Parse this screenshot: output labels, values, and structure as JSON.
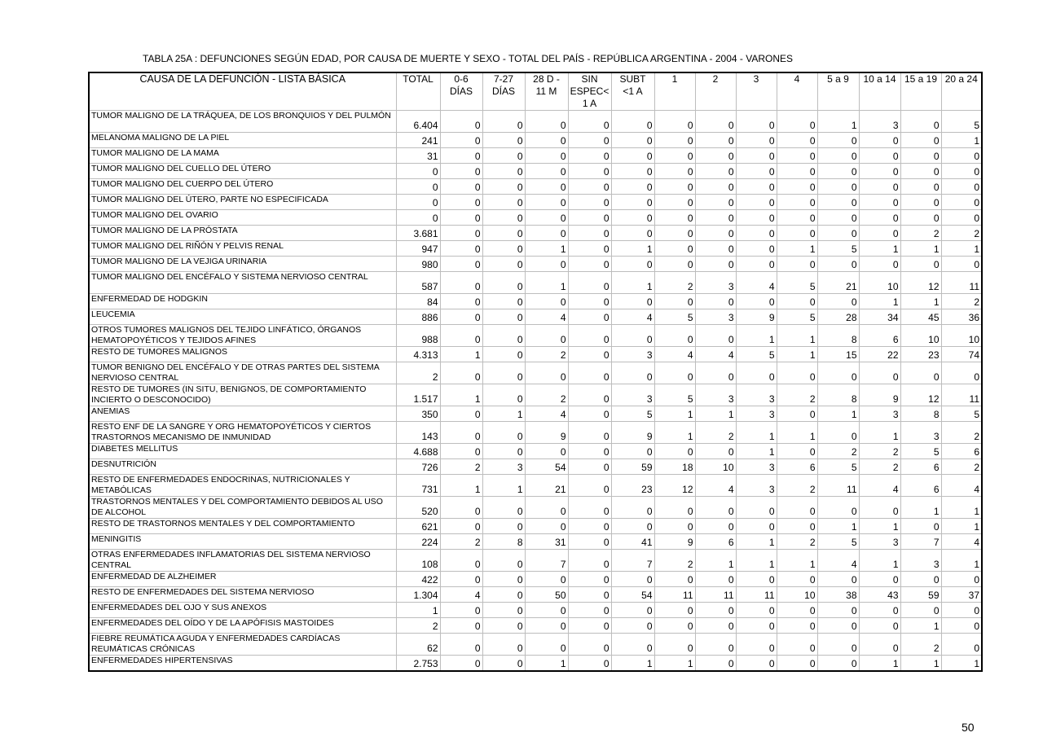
{
  "title": "TABLA 25A : DEFUNCIONES SEGÚN EDAD, POR CAUSA DE MUERTE Y SEXO - TOTAL DEL PAÍS - REPÚBLICA ARGENTINA - 2004 - VARONES",
  "page_number": "50",
  "columns": [
    "CAUSA DE LA DEFUNCIÓN - LISTA BÁSICA",
    "TOTAL",
    "0-6 DÍAS",
    "7-27 DÍAS",
    "28 D - 11 M",
    "SIN ESPEC< 1 A",
    "SUBT <1 A",
    "1",
    "2",
    "3",
    "4",
    "5 a 9",
    "10 a 14",
    "15 a 19",
    "20 a 24"
  ],
  "rows": [
    {
      "cause": "TUMOR MALIGNO DE LA TRÁQUEA,  DE LOS BRONQUIOS Y DEL PULMÓN",
      "values": [
        "6.404",
        "0",
        "0",
        "0",
        "0",
        "0",
        "0",
        "0",
        "0",
        "0",
        "1",
        "3",
        "0",
        "5"
      ]
    },
    {
      "cause": "MELANOMA MALIGNO DE LA PIEL",
      "values": [
        "241",
        "0",
        "0",
        "0",
        "0",
        "0",
        "0",
        "0",
        "0",
        "0",
        "0",
        "0",
        "0",
        "1"
      ]
    },
    {
      "cause": "TUMOR MALIGNO DE LA MAMA",
      "values": [
        "31",
        "0",
        "0",
        "0",
        "0",
        "0",
        "0",
        "0",
        "0",
        "0",
        "0",
        "0",
        "0",
        "0"
      ]
    },
    {
      "cause": "TUMOR MALIGNO DEL CUELLO DEL ÚTERO",
      "values": [
        "0",
        "0",
        "0",
        "0",
        "0",
        "0",
        "0",
        "0",
        "0",
        "0",
        "0",
        "0",
        "0",
        "0"
      ]
    },
    {
      "cause": "TUMOR MALIGNO DEL CUERPO DEL ÚTERO",
      "values": [
        "0",
        "0",
        "0",
        "0",
        "0",
        "0",
        "0",
        "0",
        "0",
        "0",
        "0",
        "0",
        "0",
        "0"
      ]
    },
    {
      "cause": "TUMOR MALIGNO DEL ÚTERO, PARTE NO ESPECIFICADA",
      "values": [
        "0",
        "0",
        "0",
        "0",
        "0",
        "0",
        "0",
        "0",
        "0",
        "0",
        "0",
        "0",
        "0",
        "0"
      ]
    },
    {
      "cause": "TUMOR MALIGNO DEL OVARIO",
      "values": [
        "0",
        "0",
        "0",
        "0",
        "0",
        "0",
        "0",
        "0",
        "0",
        "0",
        "0",
        "0",
        "0",
        "0"
      ]
    },
    {
      "cause": "TUMOR MALIGNO DE LA PRÓSTATA",
      "values": [
        "3.681",
        "0",
        "0",
        "0",
        "0",
        "0",
        "0",
        "0",
        "0",
        "0",
        "0",
        "0",
        "2",
        "2"
      ]
    },
    {
      "cause": "TUMOR MALIGNO DEL RIÑÓN Y PELVIS RENAL",
      "values": [
        "947",
        "0",
        "0",
        "1",
        "0",
        "1",
        "0",
        "0",
        "0",
        "1",
        "5",
        "1",
        "1",
        "1"
      ]
    },
    {
      "cause": "TUMOR MALIGNO DE LA VEJIGA URINARIA",
      "values": [
        "980",
        "0",
        "0",
        "0",
        "0",
        "0",
        "0",
        "0",
        "0",
        "0",
        "0",
        "0",
        "0",
        "0"
      ]
    },
    {
      "cause": "TUMOR MALIGNO DEL ENCÉFALO Y SISTEMA NERVIOSO CENTRAL",
      "values": [
        "587",
        "0",
        "0",
        "1",
        "0",
        "1",
        "2",
        "3",
        "4",
        "5",
        "21",
        "10",
        "12",
        "11"
      ]
    },
    {
      "cause": "ENFERMEDAD DE HODGKIN",
      "values": [
        "84",
        "0",
        "0",
        "0",
        "0",
        "0",
        "0",
        "0",
        "0",
        "0",
        "0",
        "1",
        "1",
        "2"
      ]
    },
    {
      "cause": "LEUCEMIA",
      "values": [
        "886",
        "0",
        "0",
        "4",
        "0",
        "4",
        "5",
        "3",
        "9",
        "5",
        "28",
        "34",
        "45",
        "36"
      ]
    },
    {
      "cause": "OTROS TUMORES MALIGNOS DEL TEJIDO LINFÁTICO, ÓRGANOS HEMATOPOYÉTICOS Y TEJIDOS AFINES",
      "values": [
        "988",
        "0",
        "0",
        "0",
        "0",
        "0",
        "0",
        "0",
        "1",
        "1",
        "8",
        "6",
        "10",
        "10"
      ]
    },
    {
      "cause": "RESTO DE TUMORES MALIGNOS",
      "values": [
        "4.313",
        "1",
        "0",
        "2",
        "0",
        "3",
        "4",
        "4",
        "5",
        "1",
        "15",
        "22",
        "23",
        "74"
      ]
    },
    {
      "cause": "TUMOR BENIGNO DEL ENCÉFALO Y DE OTRAS PARTES DEL SISTEMA NERVIOSO CENTRAL",
      "values": [
        "2",
        "0",
        "0",
        "0",
        "0",
        "0",
        "0",
        "0",
        "0",
        "0",
        "0",
        "0",
        "0",
        "0"
      ]
    },
    {
      "cause": "RESTO DE TUMORES (IN SITU, BENIGNOS, DE COMPORTAMIENTO INCIERTO O DESCONOCIDO)",
      "values": [
        "1.517",
        "1",
        "0",
        "2",
        "0",
        "3",
        "5",
        "3",
        "3",
        "2",
        "8",
        "9",
        "12",
        "11"
      ]
    },
    {
      "cause": "ANEMIAS",
      "values": [
        "350",
        "0",
        "1",
        "4",
        "0",
        "5",
        "1",
        "1",
        "3",
        "0",
        "1",
        "3",
        "8",
        "5"
      ]
    },
    {
      "cause": "RESTO ENF DE LA SANGRE Y ORG HEMATOPOYÉTICOS Y CIERTOS TRASTORNOS MECANISMO DE  INMUNIDAD",
      "values": [
        "143",
        "0",
        "0",
        "9",
        "0",
        "9",
        "1",
        "2",
        "1",
        "1",
        "0",
        "1",
        "3",
        "2"
      ]
    },
    {
      "cause": "DIABETES MELLITUS",
      "values": [
        "4.688",
        "0",
        "0",
        "0",
        "0",
        "0",
        "0",
        "0",
        "1",
        "0",
        "2",
        "2",
        "5",
        "6"
      ]
    },
    {
      "cause": "DESNUTRICIÓN",
      "values": [
        "726",
        "2",
        "3",
        "54",
        "0",
        "59",
        "18",
        "10",
        "3",
        "6",
        "5",
        "2",
        "6",
        "2"
      ]
    },
    {
      "cause": "RESTO DE ENFERMEDADES ENDOCRINAS, NUTRICIONALES Y METABÓLICAS",
      "values": [
        "731",
        "1",
        "1",
        "21",
        "0",
        "23",
        "12",
        "4",
        "3",
        "2",
        "11",
        "4",
        "6",
        "4"
      ]
    },
    {
      "cause": "TRASTORNOS MENTALES Y DEL COMPORTAMIENTO DEBIDOS AL USO DE ALCOHOL",
      "values": [
        "520",
        "0",
        "0",
        "0",
        "0",
        "0",
        "0",
        "0",
        "0",
        "0",
        "0",
        "0",
        "1",
        "1"
      ]
    },
    {
      "cause": "RESTO DE TRASTORNOS MENTALES Y DEL COMPORTAMIENTO",
      "values": [
        "621",
        "0",
        "0",
        "0",
        "0",
        "0",
        "0",
        "0",
        "0",
        "0",
        "1",
        "1",
        "0",
        "1"
      ]
    },
    {
      "cause": "MENINGITIS",
      "values": [
        "224",
        "2",
        "8",
        "31",
        "0",
        "41",
        "9",
        "6",
        "1",
        "2",
        "5",
        "3",
        "7",
        "4"
      ]
    },
    {
      "cause": "OTRAS ENFERMEDADES INFLAMATORIAS DEL SISTEMA NERVIOSO CENTRAL",
      "values": [
        "108",
        "0",
        "0",
        "7",
        "0",
        "7",
        "2",
        "1",
        "1",
        "1",
        "4",
        "1",
        "3",
        "1"
      ]
    },
    {
      "cause": "ENFERMEDAD DE ALZHEIMER",
      "values": [
        "422",
        "0",
        "0",
        "0",
        "0",
        "0",
        "0",
        "0",
        "0",
        "0",
        "0",
        "0",
        "0",
        "0"
      ]
    },
    {
      "cause": "RESTO DE ENFERMEDADES DEL SISTEMA NERVIOSO",
      "values": [
        "1.304",
        "4",
        "0",
        "50",
        "0",
        "54",
        "11",
        "11",
        "11",
        "10",
        "38",
        "43",
        "59",
        "37"
      ]
    },
    {
      "cause": "ENFERMEDADES DEL OJO Y SUS ANEXOS",
      "values": [
        "1",
        "0",
        "0",
        "0",
        "0",
        "0",
        "0",
        "0",
        "0",
        "0",
        "0",
        "0",
        "0",
        "0"
      ]
    },
    {
      "cause": "ENFERMEDADES DEL OÍDO Y DE LA APÓFISIS MASTOIDES",
      "values": [
        "2",
        "0",
        "0",
        "0",
        "0",
        "0",
        "0",
        "0",
        "0",
        "0",
        "0",
        "0",
        "1",
        "0"
      ]
    },
    {
      "cause": "FIEBRE REUMÁTICA AGUDA Y ENFERMEDADES CARDÍACAS REUMÁTICAS CRÓNICAS",
      "values": [
        "62",
        "0",
        "0",
        "0",
        "0",
        "0",
        "0",
        "0",
        "0",
        "0",
        "0",
        "0",
        "2",
        "0"
      ]
    },
    {
      "cause": "ENFERMEDADES HIPERTENSIVAS",
      "values": [
        "2.753",
        "0",
        "0",
        "1",
        "0",
        "1",
        "1",
        "0",
        "0",
        "0",
        "0",
        "1",
        "1",
        "1"
      ]
    }
  ]
}
